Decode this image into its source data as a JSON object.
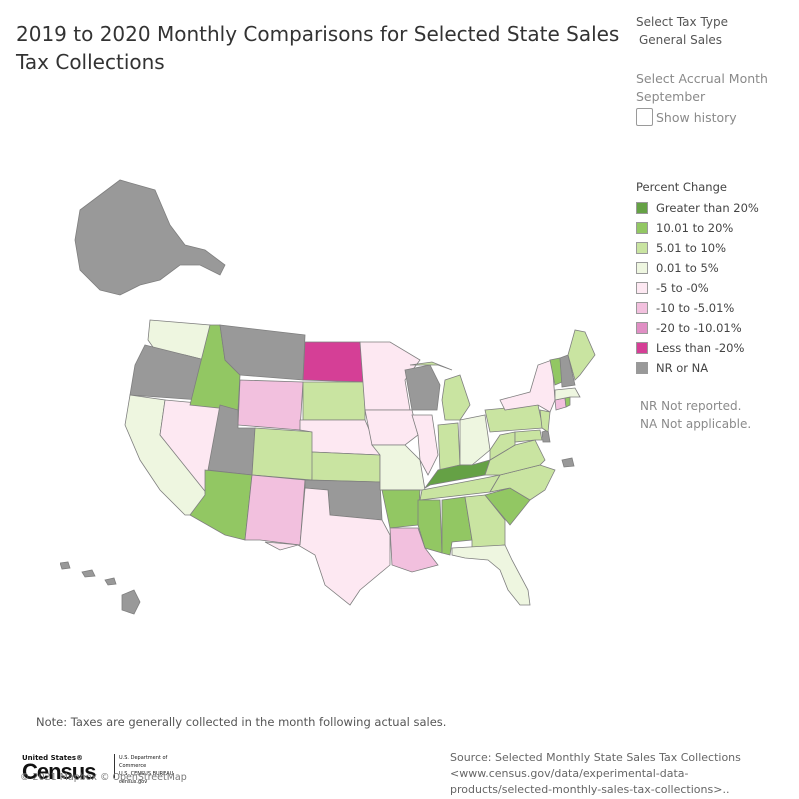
{
  "title": "2019 to 2020 Monthly Comparisons for Selected State Sales Tax Collections",
  "filters": {
    "tax_type_label": "Select Tax Type",
    "tax_type_value": "General Sales",
    "accrual_label": "Select Accrual Month",
    "accrual_value": "September",
    "history_label": "Show history"
  },
  "legend": {
    "title": "Percent Change",
    "items": [
      {
        "label": "Greater than 20%",
        "color": "#65a145"
      },
      {
        "label": "10.01 to 20%",
        "color": "#92c763"
      },
      {
        "label": "5.01 to 10%",
        "color": "#c9e4a1"
      },
      {
        "label": "0.01 to 5%",
        "color": "#eef6e0"
      },
      {
        "label": "-5 to -0%",
        "color": "#fde8f2"
      },
      {
        "label": "-10 to -5.01%",
        "color": "#f2c0de"
      },
      {
        "label": "-20 to -10.01%",
        "color": "#e08fc4"
      },
      {
        "label": "Less than -20%",
        "color": "#d53f96"
      },
      {
        "label": "NR or NA",
        "color": "#999999"
      }
    ]
  },
  "notes": {
    "nr": "NR Not reported.",
    "na": "NA Not applicable."
  },
  "map": {
    "states": {
      "AK": "NR or NA",
      "HI": "NR or NA",
      "WA": "0.01 to 5%",
      "OR": "NR or NA",
      "CA": "0.01 to 5%",
      "NV": "-5 to -0%",
      "ID": "10.01 to 20%",
      "MT": "NR or NA",
      "WY": "-10 to -5.01%",
      "UT": "NR or NA",
      "AZ": "10.01 to 20%",
      "CO": "5.01 to 10%",
      "NM": "-10 to -5.01%",
      "ND": "Less than -20%",
      "SD": "5.01 to 10%",
      "NE": "-5 to -0%",
      "KS": "5.01 to 10%",
      "OK": "NR or NA",
      "TX": "-5 to -0%",
      "MN": "-5 to -0%",
      "IA": "-5 to -0%",
      "MO": "0.01 to 5%",
      "AR": "10.01 to 20%",
      "LA": "-10 to -5.01%",
      "WI": "NR or NA",
      "IL": "-5 to -0%",
      "MI": "5.01 to 10%",
      "IN": "5.01 to 10%",
      "OH": "0.01 to 5%",
      "KY": "Greater than 20%",
      "TN": "5.01 to 10%",
      "MS": "10.01 to 20%",
      "AL": "10.01 to 20%",
      "GA": "5.01 to 10%",
      "FL": "0.01 to 5%",
      "SC": "10.01 to 20%",
      "NC": "5.01 to 10%",
      "VA": "5.01 to 10%",
      "WV": "5.01 to 10%",
      "PA": "5.01 to 10%",
      "NY": "-5 to -0%",
      "VT": "10.01 to 20%",
      "NH": "NR or NA",
      "ME": "5.01 to 10%",
      "MA": "0.01 to 5%",
      "RI": "10.01 to 20%",
      "CT": "-10 to -5.01%",
      "NJ": "5.01 to 10%",
      "DE": "NR or NA",
      "MD": "5.01 to 10%",
      "PR": "NR or NA"
    }
  },
  "footnote": "Note: Taxes are generally collected in the month following actual sales.",
  "source": "Source: Selected Monthly State Sales Tax Collections <www.census.gov/data/experimental-data-products/selected-monthly-sales-tax-collections>..",
  "logo": {
    "top": "United States®",
    "main": "Census",
    "dept1": "U.S. Department of Commerce",
    "dept2": "U.S. CENSUS BUREAU",
    "dept3": "census.gov"
  },
  "attribution": "© 2021 Mapbox © OpenStreetMap"
}
